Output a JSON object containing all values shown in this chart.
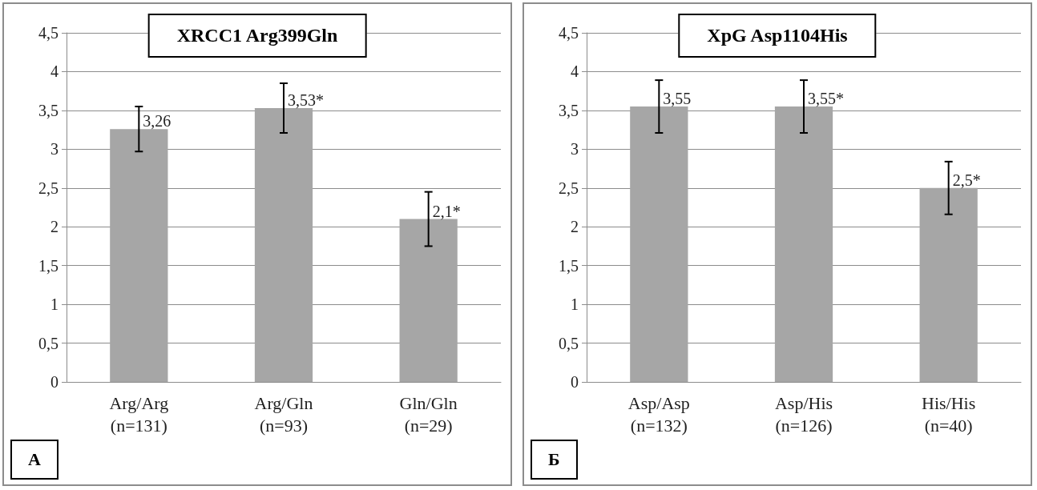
{
  "chart_data": [
    {
      "type": "bar",
      "title": "XRCC1 Arg399Gln",
      "categories": [
        "Arg/Arg\n(n=131)",
        "Arg/Gln\n(n=93)",
        "Gln/Gln\n(n=29)"
      ],
      "values": [
        3.26,
        3.53,
        2.1
      ],
      "errors": [
        0.29,
        0.32,
        0.35
      ],
      "value_labels": [
        "3,26",
        "3,53*",
        "2,1*"
      ],
      "color": "#a6a6a6",
      "ylim": [
        0,
        4.5
      ],
      "yticks": [
        0,
        {
          "value": 0.5,
          "label": "0,5"
        },
        1,
        {
          "value": 1.5,
          "label": "1,5"
        },
        2,
        {
          "value": 2.5,
          "label": "2,5"
        },
        3,
        {
          "value": 3.5,
          "label": "3,5"
        },
        4,
        {
          "value": 4.5,
          "label": "4,5"
        }
      ],
      "grid": "y",
      "annotations": [
        "А"
      ]
    },
    {
      "type": "bar",
      "title": "XpG Asp1104His",
      "categories": [
        "Asp/Asp\n(n=132)",
        "Asp/His\n(n=126)",
        "His/His\n(n=40)"
      ],
      "values": [
        3.55,
        3.55,
        2.5
      ],
      "errors": [
        0.34,
        0.34,
        0.34
      ],
      "value_labels": [
        "3,55",
        "3,55*",
        "2,5*"
      ],
      "color": "#a6a6a6",
      "ylim": [
        0,
        4.5
      ],
      "yticks": [
        0,
        {
          "value": 0.5,
          "label": "0,5"
        },
        1,
        {
          "value": 1.5,
          "label": "1,5"
        },
        2,
        {
          "value": 2.5,
          "label": "2,5"
        },
        3,
        {
          "value": 3.5,
          "label": "3,5"
        },
        4,
        {
          "value": 4.5,
          "label": "4,5"
        }
      ],
      "grid": "y",
      "annotations": [
        "Б"
      ]
    }
  ]
}
